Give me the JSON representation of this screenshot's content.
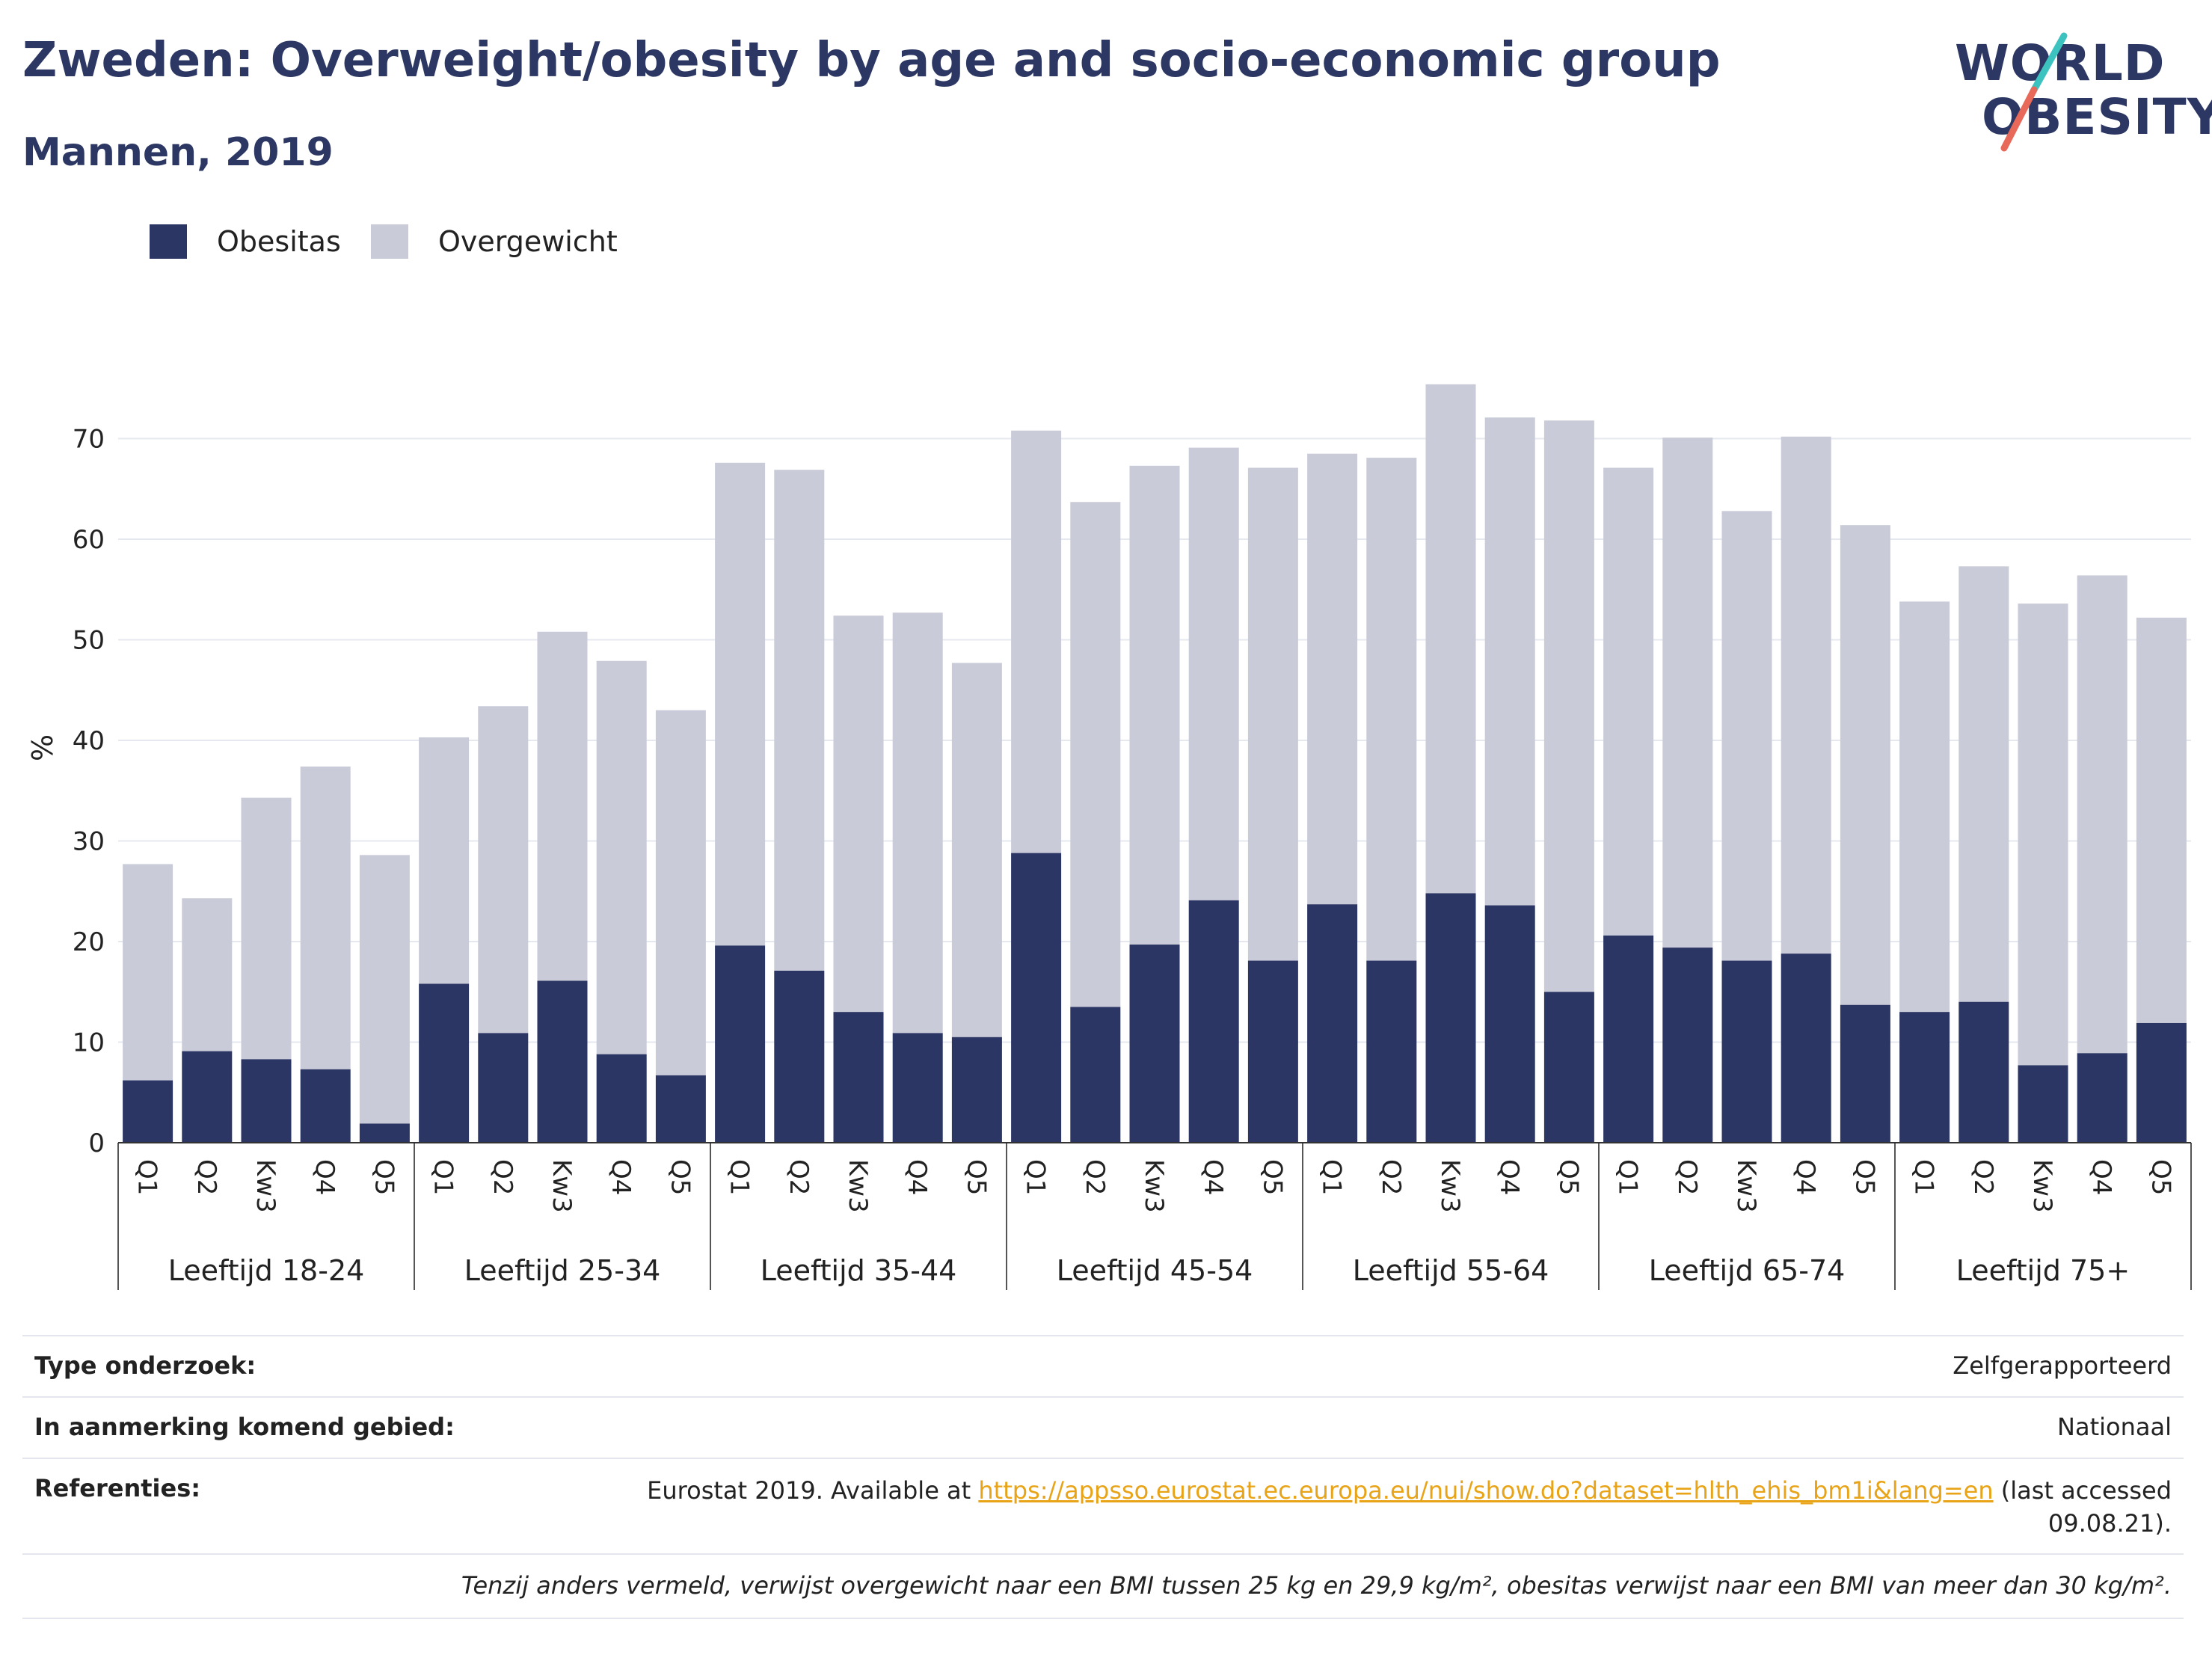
{
  "header": {
    "title": "Zweden: Overweight/obesity by age and socio-economic group",
    "subtitle": "Mannen, 2019"
  },
  "logo": {
    "line1": "WORLD",
    "line2": "OBESITY",
    "colors": [
      "#2c3863",
      "#3cc3c0",
      "#e8685a"
    ]
  },
  "legend": [
    {
      "label": "Obesitas",
      "color": "#2b3664"
    },
    {
      "label": "Overgewicht",
      "color": "#c9cbd8"
    }
  ],
  "chart_data": {
    "type": "bar",
    "stacked": true,
    "ylabel": "%",
    "ylim": [
      0,
      80
    ],
    "yticks": [
      0,
      10,
      20,
      30,
      40,
      50,
      60,
      70
    ],
    "grid": true,
    "legend_position": "top-left",
    "groups": [
      "Leeftijd 18-24",
      "Leeftijd 25-34",
      "Leeftijd 35-44",
      "Leeftijd 45-54",
      "Leeftijd 55-64",
      "Leeftijd 65-74",
      "Leeftijd 75+"
    ],
    "subcategories": [
      "Q1",
      "Q2",
      "Kw3",
      "Q4",
      "Q5"
    ],
    "series": [
      {
        "name": "Obesitas",
        "color": "#2b3664",
        "values": [
          [
            6.2,
            9.1,
            8.3,
            7.3,
            1.9
          ],
          [
            15.8,
            10.9,
            16.1,
            8.8,
            6.7
          ],
          [
            19.6,
            17.1,
            13.0,
            10.9,
            10.5
          ],
          [
            28.8,
            13.5,
            19.7,
            24.1,
            18.1
          ],
          [
            23.7,
            18.1,
            24.8,
            23.6,
            15.0
          ],
          [
            20.6,
            19.4,
            18.1,
            18.8,
            13.7
          ],
          [
            13.0,
            14.0,
            7.7,
            8.9,
            11.9
          ]
        ]
      },
      {
        "name": "Overgewicht",
        "color": "#c9cbd8",
        "values": [
          [
            21.5,
            15.2,
            26.0,
            30.1,
            26.7
          ],
          [
            24.5,
            32.5,
            34.7,
            39.1,
            36.3
          ],
          [
            48.0,
            49.8,
            39.4,
            41.8,
            37.2
          ],
          [
            42.0,
            50.2,
            47.6,
            45.0,
            49.0
          ],
          [
            44.8,
            50.0,
            50.6,
            48.5,
            56.8
          ],
          [
            46.5,
            50.7,
            44.7,
            51.4,
            47.7
          ],
          [
            40.8,
            43.3,
            45.9,
            47.5,
            40.3
          ]
        ]
      }
    ]
  },
  "info": {
    "rows": [
      {
        "label": "Type onderzoek:",
        "value": "Zelfgerapporteerd"
      },
      {
        "label": "In aanmerking komend gebied:",
        "value": "Nationaal"
      }
    ],
    "references": {
      "label": "Referenties:",
      "prefix": "Eurostat 2019. Available at ",
      "link": "https://appsso.eurostat.ec.europa.eu/nui/show.do?dataset=hlth_ehis_bm1i&lang=en",
      "suffix": " (last accessed",
      "suffix2": "09.08.21)."
    },
    "note": "Tenzij anders vermeld, verwijst overgewicht naar een BMI tussen 25 kg en 29,9 kg/m², obesitas verwijst naar een BMI van meer dan 30 kg/m²."
  }
}
